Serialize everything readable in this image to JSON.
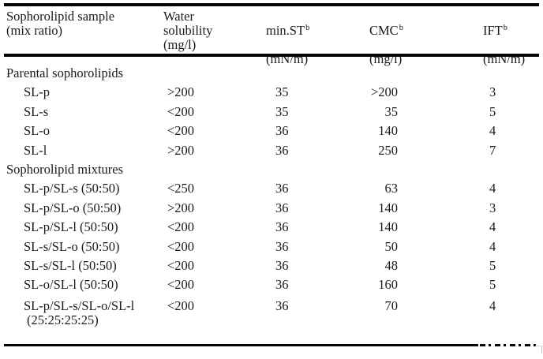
{
  "table": {
    "columns": [
      {
        "label": "Sophorolipid sample\n(mix ratio)",
        "sup": "",
        "unit": ""
      },
      {
        "label": "Water\nsolubility\n(mg/l)",
        "sup": "",
        "unit": ""
      },
      {
        "label": "min.ST",
        "sup": "b",
        "unit": "(mN/m)"
      },
      {
        "label": "CMC",
        "sup": "b",
        "unit": "(mg/l)"
      },
      {
        "label": "IFT",
        "sup": "b",
        "unit": "(mN/m)"
      }
    ],
    "rows": [
      {
        "type": "section",
        "sample": "Parental sophorolipids"
      },
      {
        "type": "data",
        "sample": "SL-p",
        "water": ">200",
        "st": "35",
        "cmc": ">200",
        "ift": "3"
      },
      {
        "type": "data",
        "sample": "SL-s",
        "water": "<200",
        "st": "35",
        "cmc": "35",
        "ift": "5"
      },
      {
        "type": "data",
        "sample": "SL-o",
        "water": "<200",
        "st": "36",
        "cmc": "140",
        "ift": "4"
      },
      {
        "type": "data",
        "sample": "SL-l",
        "water": ">200",
        "st": "36",
        "cmc": "250",
        "ift": "7"
      },
      {
        "type": "section",
        "sample": "Sophorolipid mixtures"
      },
      {
        "type": "data",
        "sample": "SL-p/SL-s (50:50)",
        "water": "<250",
        "st": "36",
        "cmc": "63",
        "ift": "4"
      },
      {
        "type": "data",
        "sample": "SL-p/SL-o (50:50)",
        "water": ">200",
        "st": "36",
        "cmc": "140",
        "ift": "3"
      },
      {
        "type": "data",
        "sample": "SL-p/SL-l (50:50)",
        "water": "<200",
        "st": "36",
        "cmc": "140",
        "ift": "4"
      },
      {
        "type": "data",
        "sample": "SL-s/SL-o (50:50)",
        "water": "<200",
        "st": "36",
        "cmc": "50",
        "ift": "4"
      },
      {
        "type": "data",
        "sample": "SL-s/SL-l (50:50)",
        "water": "<200",
        "st": "36",
        "cmc": "48",
        "ift": "5"
      },
      {
        "type": "data",
        "sample": "SL-o/SL-l (50:50)",
        "water": "<200",
        "st": "36",
        "cmc": "160",
        "ift": "5"
      },
      {
        "type": "data",
        "sample": "SL-p/SL-s/SL-o/SL-l\n(25:25:25:25)",
        "water": "<200",
        "st": "36",
        "cmc": "70",
        "ift": "4"
      }
    ],
    "colors": {
      "text": "#1a1a1a",
      "rule": "#050505",
      "background": "#ffffff"
    }
  }
}
